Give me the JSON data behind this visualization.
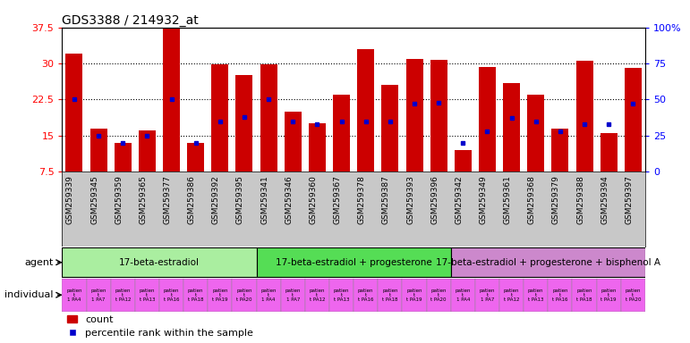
{
  "title": "GDS3388 / 214932_at",
  "samples": [
    "GSM259339",
    "GSM259345",
    "GSM259359",
    "GSM259365",
    "GSM259377",
    "GSM259386",
    "GSM259392",
    "GSM259395",
    "GSM259341",
    "GSM259346",
    "GSM259360",
    "GSM259367",
    "GSM259378",
    "GSM259387",
    "GSM259393",
    "GSM259396",
    "GSM259342",
    "GSM259349",
    "GSM259361",
    "GSM259368",
    "GSM259379",
    "GSM259388",
    "GSM259394",
    "GSM259397"
  ],
  "counts": [
    32.0,
    16.5,
    13.5,
    16.0,
    37.5,
    13.5,
    29.8,
    27.5,
    29.8,
    20.0,
    17.5,
    23.5,
    33.0,
    25.5,
    31.0,
    30.8,
    12.0,
    29.2,
    26.0,
    23.5,
    16.5,
    30.5,
    15.5,
    29.0
  ],
  "percentile_pct": [
    50,
    25,
    20,
    25,
    50,
    20,
    35,
    38,
    50,
    35,
    33,
    35,
    35,
    35,
    47,
    48,
    20,
    28,
    37,
    35,
    28,
    33,
    33,
    47
  ],
  "ylim": [
    7.5,
    37.5
  ],
  "yticks": [
    7.5,
    15.0,
    22.5,
    30.0,
    37.5
  ],
  "right_yticks": [
    0,
    25,
    50,
    75,
    100
  ],
  "bar_color": "#CC0000",
  "percentile_color": "#0000CC",
  "agent_colors": {
    "17-beta-estradiol": "#AAEEA0",
    "17-beta-estradiol + progesterone": "#55DD55",
    "17-beta-estradiol + progesterone + bisphenol A": "#CC88CC"
  },
  "individual_color": "#EE66EE",
  "xtick_bg": "#C8C8C8",
  "agent_spans": [
    {
      "agent": "17-beta-estradiol",
      "start": 0,
      "end": 7
    },
    {
      "agent": "17-beta-estradiol + progesterone",
      "start": 8,
      "end": 15
    },
    {
      "agent": "17-beta-estradiol + progesterone + bisphenol A",
      "start": 16,
      "end": 23
    }
  ],
  "indiv_labels": [
    "patien\nt\n1 PA4",
    "patien\nt\n1 PA7",
    "patien\nt\nt PA12",
    "patien\nt\nt PA13",
    "patien\nt\nt PA16",
    "patien\nt\nt PA18",
    "patien\nt\nt PA19",
    "patien\nt\nt PA20"
  ]
}
